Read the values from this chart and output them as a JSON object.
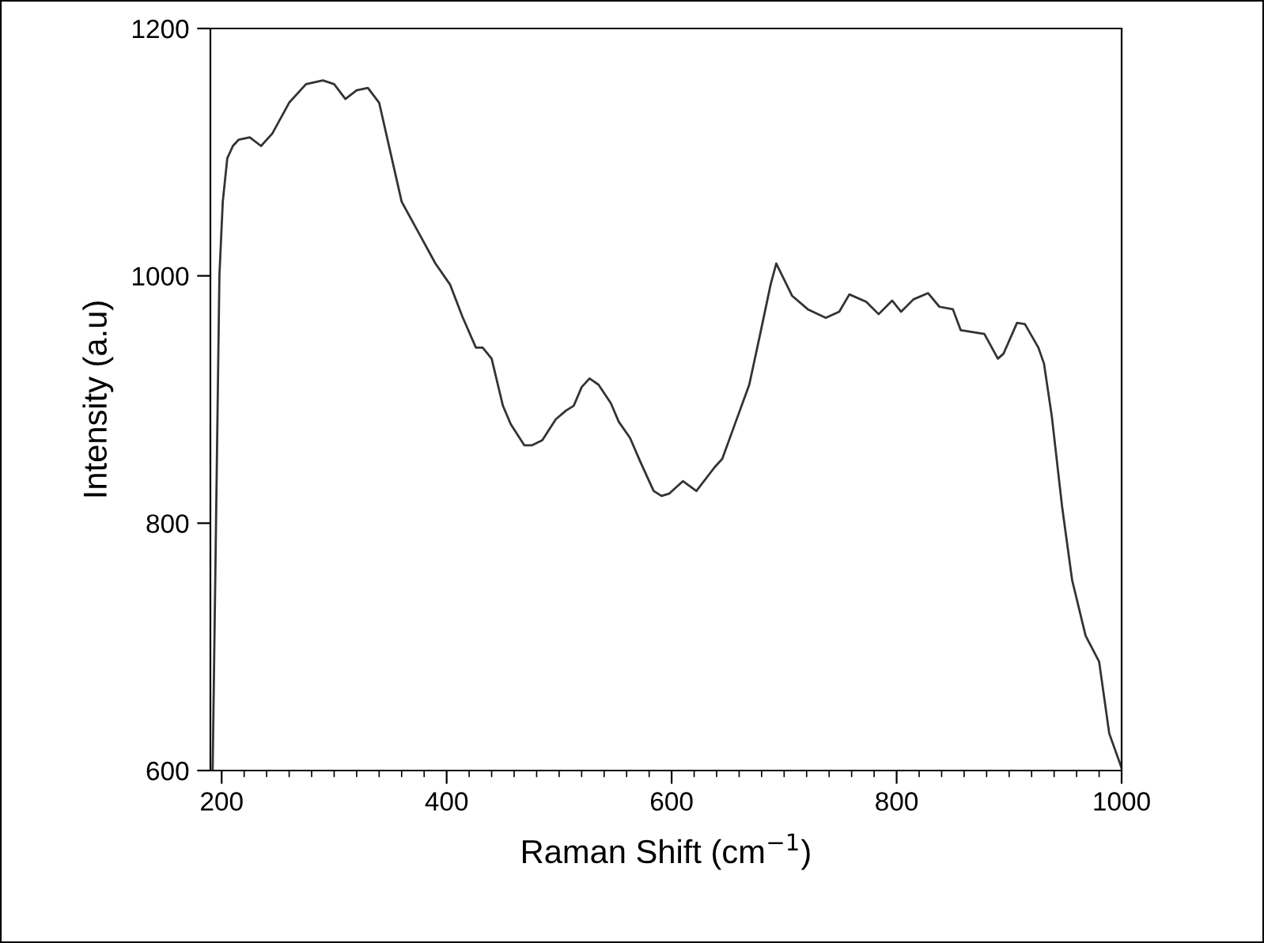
{
  "chart_data": {
    "type": "line",
    "xlabel": "Raman Shift (cm$^{−1}$)",
    "ylabel": "Intensity (a.u)",
    "xlim": [
      190,
      1000
    ],
    "ylim": [
      600,
      1200
    ],
    "xticks": [
      200,
      {
        "value": 220,
        "label": null
      },
      {
        "value": 240,
        "label": null
      },
      {
        "value": 260,
        "label": null
      },
      {
        "value": 280,
        "label": null
      },
      {
        "value": 300,
        "label": null
      },
      {
        "value": 320,
        "label": null
      },
      {
        "value": 340,
        "label": null
      },
      {
        "value": 360,
        "label": null
      },
      {
        "value": 380,
        "label": null
      },
      400,
      {
        "value": 420,
        "label": null
      },
      {
        "value": 440,
        "label": null
      },
      {
        "value": 460,
        "label": null
      },
      {
        "value": 480,
        "label": null
      },
      {
        "value": 500,
        "label": null
      },
      {
        "value": 520,
        "label": null
      },
      {
        "value": 540,
        "label": null
      },
      {
        "value": 560,
        "label": null
      },
      {
        "value": 580,
        "label": null
      },
      600,
      {
        "value": 620,
        "label": null
      },
      {
        "value": 640,
        "label": null
      },
      {
        "value": 660,
        "label": null
      },
      {
        "value": 680,
        "label": null
      },
      {
        "value": 700,
        "label": null
      },
      {
        "value": 720,
        "label": null
      },
      {
        "value": 740,
        "label": null
      },
      {
        "value": 760,
        "label": null
      },
      {
        "value": 780,
        "label": null
      },
      800,
      {
        "value": 820,
        "label": null
      },
      {
        "value": 840,
        "label": null
      },
      {
        "value": 860,
        "label": null
      },
      {
        "value": 880,
        "label": null
      },
      {
        "value": 900,
        "label": null
      },
      {
        "value": 920,
        "label": null
      },
      {
        "value": 940,
        "label": null
      },
      {
        "value": 960,
        "label": null
      },
      {
        "value": 980,
        "label": null
      },
      1000
    ],
    "yticks": [
      600,
      800,
      1000,
      1200
    ],
    "grid": false,
    "marker": "none",
    "line_style": "solid",
    "series": [
      {
        "color": "#333333",
        "x": [
          192,
          195,
          198,
          201,
          205,
          210,
          215,
          225,
          235,
          245,
          260,
          275,
          290,
          300,
          310,
          320,
          330,
          340,
          350,
          360,
          375,
          390,
          403,
          414,
          426,
          432,
          440,
          450,
          457,
          469,
          476,
          485,
          497,
          506,
          513,
          520,
          527,
          535,
          546,
          553,
          563,
          572,
          584,
          591,
          598,
          610,
          622,
          638,
          645,
          657,
          669,
          678,
          688,
          693,
          707,
          721,
          737,
          749,
          758,
          773,
          784,
          796,
          804,
          815,
          828,
          838,
          850,
          857,
          878,
          890,
          895,
          907,
          914,
          926,
          931,
          938,
          947,
          956,
          968,
          980,
          989,
          1000
        ],
        "values": [
          600,
          800,
          1000,
          1060,
          1095,
          1105,
          1110,
          1112,
          1105,
          1115,
          1140,
          1155,
          1158,
          1155,
          1143,
          1150,
          1152,
          1140,
          1100,
          1060,
          1035,
          1010,
          993,
          967,
          942,
          942,
          933,
          895,
          880,
          863,
          863,
          867,
          884,
          891,
          895,
          910,
          917,
          912,
          897,
          882,
          869,
          850,
          826,
          822,
          824,
          834,
          826,
          845,
          852,
          882,
          912,
          950,
          993,
          1010,
          984,
          973,
          966,
          971,
          985,
          979,
          969,
          980,
          971,
          981,
          986,
          975,
          973,
          956,
          953,
          933,
          937,
          962,
          961,
          942,
          929,
          886,
          814,
          754,
          709,
          688,
          630,
          602
        ]
      }
    ]
  }
}
